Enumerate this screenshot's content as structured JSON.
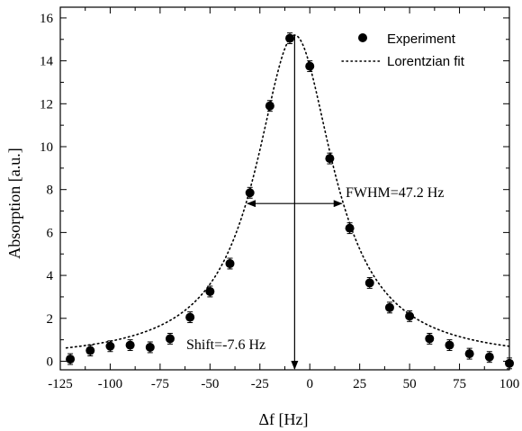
{
  "chart_data": {
    "type": "scatter",
    "title": "",
    "xlabel": "Δf [Hz]",
    "ylabel": "Absorption [a.u.]",
    "xlim": [
      -125,
      100
    ],
    "ylim": [
      -0.4,
      16.5
    ],
    "x_ticks": [
      -125,
      -100,
      -75,
      -50,
      -25,
      0,
      25,
      50,
      75,
      100
    ],
    "y_ticks": [
      0,
      2,
      4,
      6,
      8,
      10,
      12,
      14,
      16
    ],
    "grid": false,
    "legend_position": "top-right",
    "series": [
      {
        "name": "Experiment",
        "style": "markers-with-errorbars",
        "color": "#000000",
        "x": [
          -120,
          -110,
          -100,
          -90,
          -80,
          -70,
          -60,
          -50,
          -40,
          -30,
          -20,
          -10,
          0,
          10,
          20,
          30,
          40,
          50,
          60,
          70,
          80,
          90,
          100
        ],
        "y": [
          0.1,
          0.5,
          0.7,
          0.75,
          0.65,
          1.05,
          2.05,
          3.25,
          4.55,
          7.85,
          11.9,
          15.05,
          13.75,
          9.45,
          6.2,
          3.65,
          2.5,
          2.1,
          1.05,
          0.75,
          0.35,
          0.2,
          -0.1
        ],
        "error": 0.25
      },
      {
        "name": "Lorentzian fit",
        "style": "dotted-line",
        "color": "#000000",
        "model": "lorentzian",
        "center": -7.6,
        "fwhm": 47.2,
        "amplitude": 15.2,
        "offset": 0.0
      }
    ],
    "annotations": {
      "fwhm_label": "FWHM=47.2 Hz",
      "shift_label": "Shift=-7.6 Hz",
      "fwhm_arrow": {
        "x_from": -31.2,
        "x_to": 16.0,
        "y": 7.35
      },
      "center_arrow": {
        "x": -7.6,
        "y_from": 15.2,
        "y_to": -0.4
      }
    }
  }
}
